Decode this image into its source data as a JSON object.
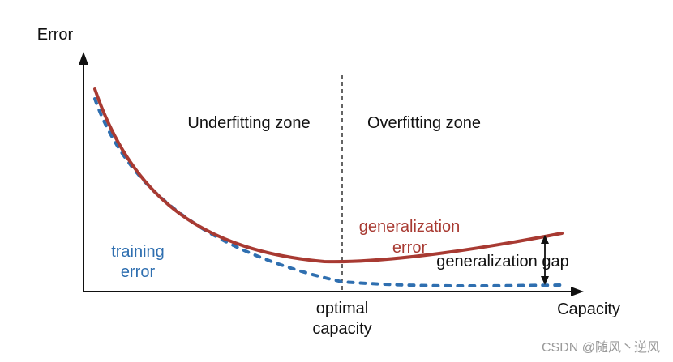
{
  "diagram": {
    "y_axis_label": "Error",
    "x_axis_label": "Capacity",
    "zone_left": "Underfitting zone",
    "zone_right": "Overfitting zone",
    "training_label": [
      "training",
      "error"
    ],
    "generalization_label": [
      "generalization",
      "error"
    ],
    "gap_label": "generalization gap",
    "optimal_label": [
      "optimal",
      "capacity"
    ],
    "watermark": "CSDN @随风丶逆风",
    "colors": {
      "axis": "#111111",
      "generalization_curve": "#a83a32",
      "training_curve": "#2f6fb0",
      "text": "#111111",
      "watermark": "#9a9a9a"
    }
  }
}
